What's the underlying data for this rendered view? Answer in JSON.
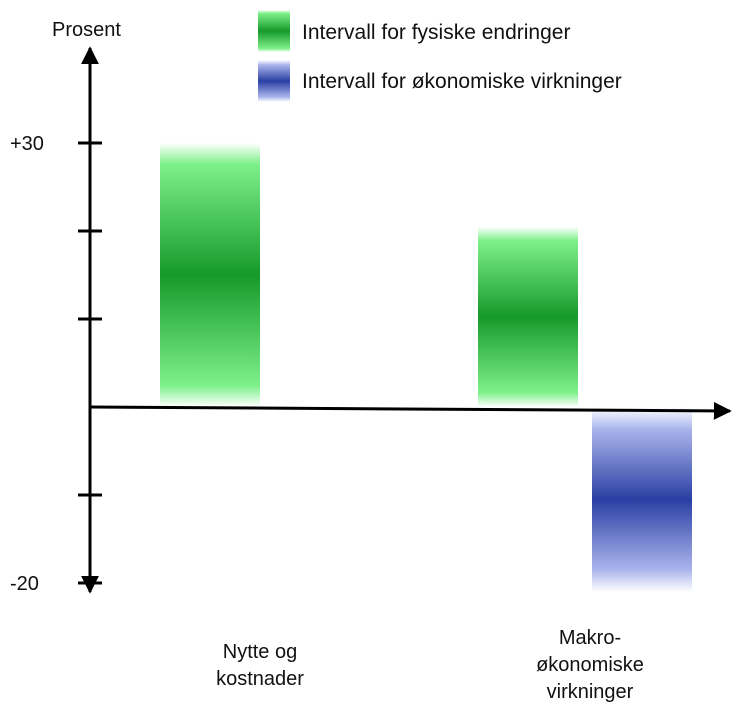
{
  "chart_data": {
    "type": "bar",
    "ylabel": "Prosent",
    "ytick_labels": [
      {
        "value": 30,
        "label": "+30"
      },
      {
        "value": -20,
        "label": "-20"
      }
    ],
    "ytick_values": [
      -20,
      -10,
      0,
      10,
      20,
      30
    ],
    "ylim": [
      -21,
      36
    ],
    "categories": [
      {
        "name": "Nytte og kostnader",
        "lines": [
          "Nytte og",
          "kostnader"
        ]
      },
      {
        "name": "Makroøkonomiske virkninger",
        "lines": [
          "Makro-",
          "økonomiske",
          "virkninger"
        ]
      }
    ],
    "series": [
      {
        "name": "Intervall for fysiske endringer",
        "color": "#1a9a2e",
        "intervals": [
          {
            "category": 0,
            "low": 0,
            "high": 30
          },
          {
            "category": 1,
            "low": 0,
            "high": 20.5
          }
        ]
      },
      {
        "name": "Intervall for økonomiske virkninger",
        "color": "#2f45a8",
        "intervals": [
          {
            "category": 1,
            "low": -21,
            "high": 0
          }
        ]
      }
    ],
    "legend_position": "top",
    "grid": false
  }
}
